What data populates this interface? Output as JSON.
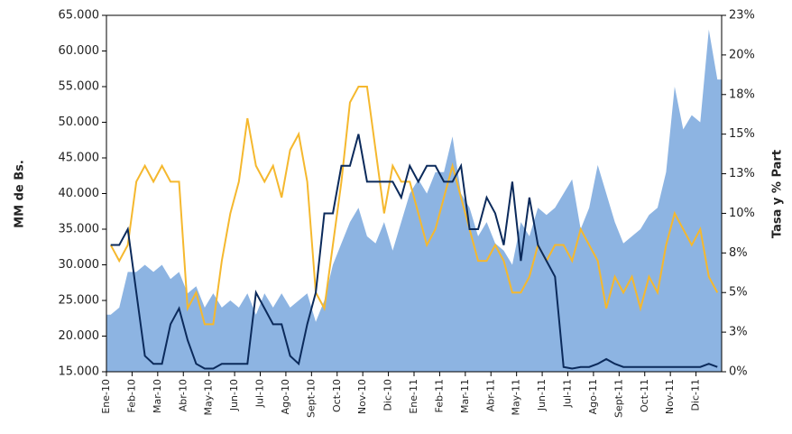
{
  "chart_data": {
    "type": "area_line",
    "categories": [
      "Ene-10",
      null,
      null,
      "Feb-10",
      null,
      null,
      "Mar-10",
      null,
      null,
      "Abr-10",
      null,
      null,
      "May-10",
      null,
      null,
      "Jun-10",
      null,
      null,
      "Jul-10",
      null,
      null,
      "Ago-10",
      null,
      null,
      "Sept-10",
      null,
      null,
      "Oct-10",
      null,
      null,
      "Nov-10",
      null,
      null,
      "Dic-10",
      null,
      null,
      "Ene-11",
      null,
      null,
      "Feb-11",
      null,
      null,
      "Mar-11",
      null,
      null,
      "Abr-11",
      null,
      null,
      "May-11",
      null,
      null,
      "Jun-11",
      null,
      null,
      "Jul-11",
      null,
      null,
      "Ago-11",
      null,
      null,
      "Sept-11",
      null,
      null,
      "Oct-11",
      null,
      null,
      "Nov-11",
      null,
      null,
      "Dic-11",
      null,
      null
    ],
    "ylabel": "MM de Bs.",
    "y2label": "Tasa y % Part",
    "ylim": [
      15000,
      65000
    ],
    "yticks": [
      {
        "value": 15000,
        "label": "15.000"
      },
      {
        "value": 20000,
        "label": "20.000"
      },
      {
        "value": 25000,
        "label": "25.000"
      },
      {
        "value": 30000,
        "label": "30.000"
      },
      {
        "value": 35000,
        "label": "35.000"
      },
      {
        "value": 40000,
        "label": "40.000"
      },
      {
        "value": 45000,
        "label": "45.000"
      },
      {
        "value": 50000,
        "label": "50.000"
      },
      {
        "value": 55000,
        "label": "55.000"
      },
      {
        "value": 60000,
        "label": "60.000"
      },
      {
        "value": 65000,
        "label": "65.000"
      }
    ],
    "y2lim": [
      0,
      22.5
    ],
    "y2ticks": [
      {
        "value": 0,
        "label": "0%"
      },
      {
        "value": 2.5,
        "label": "3%"
      },
      {
        "value": 5,
        "label": "5%"
      },
      {
        "value": 7.5,
        "label": "8%"
      },
      {
        "value": 10,
        "label": "10%"
      },
      {
        "value": 12.5,
        "label": "13%"
      },
      {
        "value": 15,
        "label": "15%"
      },
      {
        "value": 17.5,
        "label": "18%"
      },
      {
        "value": 20,
        "label": "20%"
      },
      {
        "value": 22.5,
        "label": "23%"
      }
    ],
    "series": [
      {
        "type": "area",
        "color": "#8db4e2",
        "values": [
          23000,
          24000,
          29000,
          29000,
          30000,
          29000,
          30000,
          28000,
          29000,
          26000,
          27000,
          24000,
          26000,
          24000,
          25000,
          24000,
          26000,
          23000,
          26000,
          24000,
          26000,
          24000,
          25000,
          26000,
          22000,
          25000,
          30000,
          33000,
          36000,
          38000,
          34000,
          33000,
          36000,
          32000,
          36000,
          40000,
          42000,
          40000,
          43000,
          43000,
          48000,
          40000,
          38000,
          34000,
          36000,
          33000,
          32000,
          30000,
          36000,
          34000,
          38000,
          37000,
          38000,
          40000,
          42000,
          35000,
          38000,
          44000,
          40000,
          36000,
          33000,
          34000,
          35000,
          37000,
          38000,
          43000,
          55000,
          49000,
          51000,
          50000,
          63000,
          56000
        ]
      },
      {
        "type": "line",
        "axis": "y2",
        "color": "#f5b82e",
        "values": [
          8,
          7,
          8,
          12,
          13,
          12,
          13,
          12,
          12,
          4,
          5,
          3,
          3,
          7,
          10,
          12,
          16,
          13,
          12,
          13,
          11,
          14,
          15,
          12,
          5,
          4,
          8,
          12,
          17,
          18,
          18,
          14,
          10,
          13,
          12,
          12,
          10,
          8,
          9,
          11,
          13,
          11,
          9,
          7,
          7,
          8,
          7,
          5,
          5,
          6,
          8,
          7,
          8,
          8,
          7,
          9,
          8,
          7,
          4,
          6,
          5,
          6,
          4,
          6,
          5,
          8,
          10,
          9,
          8,
          9,
          6,
          5
        ]
      },
      {
        "type": "line",
        "axis": "y2",
        "color": "#0b2a5b",
        "values": [
          8,
          8,
          9,
          5,
          1,
          0.5,
          0.5,
          3,
          4,
          2,
          0.5,
          0.2,
          0.2,
          0.5,
          0.5,
          0.5,
          0.5,
          5,
          4,
          3,
          3,
          1,
          0.5,
          3,
          5,
          10,
          10,
          13,
          13,
          15,
          12,
          12,
          12,
          12,
          11,
          13,
          12,
          13,
          13,
          12,
          12,
          13,
          9,
          9,
          11,
          10,
          8,
          12,
          7,
          11,
          8,
          7,
          6,
          0.3,
          0.2,
          0.3,
          0.3,
          0.5,
          0.8,
          0.5,
          0.3,
          0.3,
          0.3,
          0.3,
          0.3,
          0.3,
          0.3,
          0.3,
          0.3,
          0.3,
          0.5,
          0.3
        ]
      }
    ]
  }
}
